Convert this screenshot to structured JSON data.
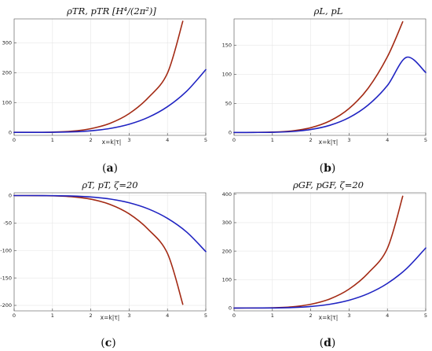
{
  "chart_data": [
    {
      "type": "line",
      "title": "ρTR, pTR [H⁴/(2π²)]",
      "xlabel": "x=k|τ|",
      "sublabel": {
        "open": "(",
        "letter": "a",
        "close": ")"
      },
      "xlim": [
        0,
        5
      ],
      "ylim": [
        -10,
        380
      ],
      "xticks": [
        0,
        1,
        2,
        3,
        4,
        5
      ],
      "yticks": [
        0,
        100,
        200,
        300
      ],
      "grid": true,
      "series": [
        {
          "color": "#a32a14",
          "x": [
            0,
            0.5,
            1,
            1.5,
            2,
            2.5,
            3,
            3.5,
            4,
            4.4
          ],
          "y": [
            0,
            0.1,
            0.8,
            3.9,
            12.4,
            30.3,
            62.8,
            116.3,
            198.4,
            372
          ]
        },
        {
          "color": "#1f23c2",
          "x": [
            0,
            0.5,
            1,
            1.5,
            2,
            2.5,
            3,
            3.5,
            4,
            4.5,
            5
          ],
          "y": [
            0,
            0.02,
            0.3,
            1.7,
            5.4,
            13.1,
            27.2,
            50.4,
            86.0,
            137.7,
            210
          ]
        }
      ]
    },
    {
      "type": "line",
      "title": "ρL, pL",
      "xlabel": "x=k|τ|",
      "sublabel": {
        "open": "(",
        "letter": "b",
        "close": ")"
      },
      "xlim": [
        0,
        5
      ],
      "ylim": [
        -5,
        195
      ],
      "xticks": [
        0,
        1,
        2,
        3,
        4,
        5
      ],
      "yticks": [
        0,
        50,
        100,
        150
      ],
      "grid": true,
      "series": [
        {
          "color": "#a32a14",
          "x": [
            0,
            0.5,
            1,
            1.5,
            2,
            2.5,
            3,
            3.5,
            4,
            4.4
          ],
          "y": [
            0,
            0.1,
            0.6,
            2.6,
            8.1,
            19.8,
            41.1,
            76.1,
            129.9,
            190
          ]
        },
        {
          "color": "#1f23c2",
          "x": [
            0,
            0.5,
            1,
            1.5,
            2,
            2.5,
            3,
            3.5,
            4,
            4.5,
            5
          ],
          "y": [
            0,
            0.03,
            0.3,
            1.6,
            5.0,
            12.3,
            25.5,
            47.2,
            80.6,
            129.1,
            103
          ]
        }
      ]
    },
    {
      "type": "line",
      "title": "ρT, pT, ζ=20",
      "xlabel": "x=k|τ|",
      "sublabel": {
        "open": "(",
        "letter": "c",
        "close": ")"
      },
      "xlim": [
        0,
        5
      ],
      "ylim": [
        -210,
        5
      ],
      "xticks": [
        0,
        1,
        2,
        3,
        4,
        5
      ],
      "yticks": [
        0,
        -50,
        -100,
        -150,
        -200
      ],
      "grid": true,
      "series": [
        {
          "color": "#a32a14",
          "x": [
            0,
            0.5,
            1,
            1.5,
            2,
            2.5,
            3,
            3.5,
            4,
            4.4
          ],
          "y": [
            0,
            -0.05,
            -0.4,
            -2.1,
            -6.6,
            -16.1,
            -33.3,
            -61.7,
            -105.3,
            -198
          ]
        },
        {
          "color": "#1f23c2",
          "x": [
            0,
            0.5,
            1,
            1.5,
            2,
            2.5,
            3,
            3.5,
            4,
            4.5,
            5
          ],
          "y": [
            0,
            -0.02,
            -0.2,
            -0.8,
            -2.6,
            -6.3,
            -13.1,
            -24.3,
            -41.5,
            -66.4,
            -102
          ]
        }
      ]
    },
    {
      "type": "line",
      "title": "ρGF, pGF, ζ=20",
      "xlabel": "x=k|τ|",
      "sublabel": {
        "open": "(",
        "letter": "d",
        "close": ")"
      },
      "xlim": [
        0,
        5
      ],
      "ylim": [
        -10,
        405
      ],
      "xticks": [
        0,
        1,
        2,
        3,
        4,
        5
      ],
      "yticks": [
        0,
        100,
        200,
        300,
        400
      ],
      "grid": true,
      "series": [
        {
          "color": "#a32a14",
          "x": [
            0,
            0.5,
            1,
            1.5,
            2,
            2.5,
            3,
            3.5,
            4,
            4.4
          ],
          "y": [
            0,
            0.1,
            0.8,
            4.1,
            13.1,
            32.0,
            66.4,
            123.0,
            209.8,
            393
          ]
        },
        {
          "color": "#1f23c2",
          "x": [
            0,
            0.5,
            1,
            1.5,
            2,
            2.5,
            3,
            3.5,
            4,
            4.5,
            5
          ],
          "y": [
            0,
            0.03,
            0.3,
            1.7,
            5.4,
            13.2,
            27.4,
            50.7,
            86.5,
            138.6,
            211
          ]
        }
      ]
    }
  ]
}
